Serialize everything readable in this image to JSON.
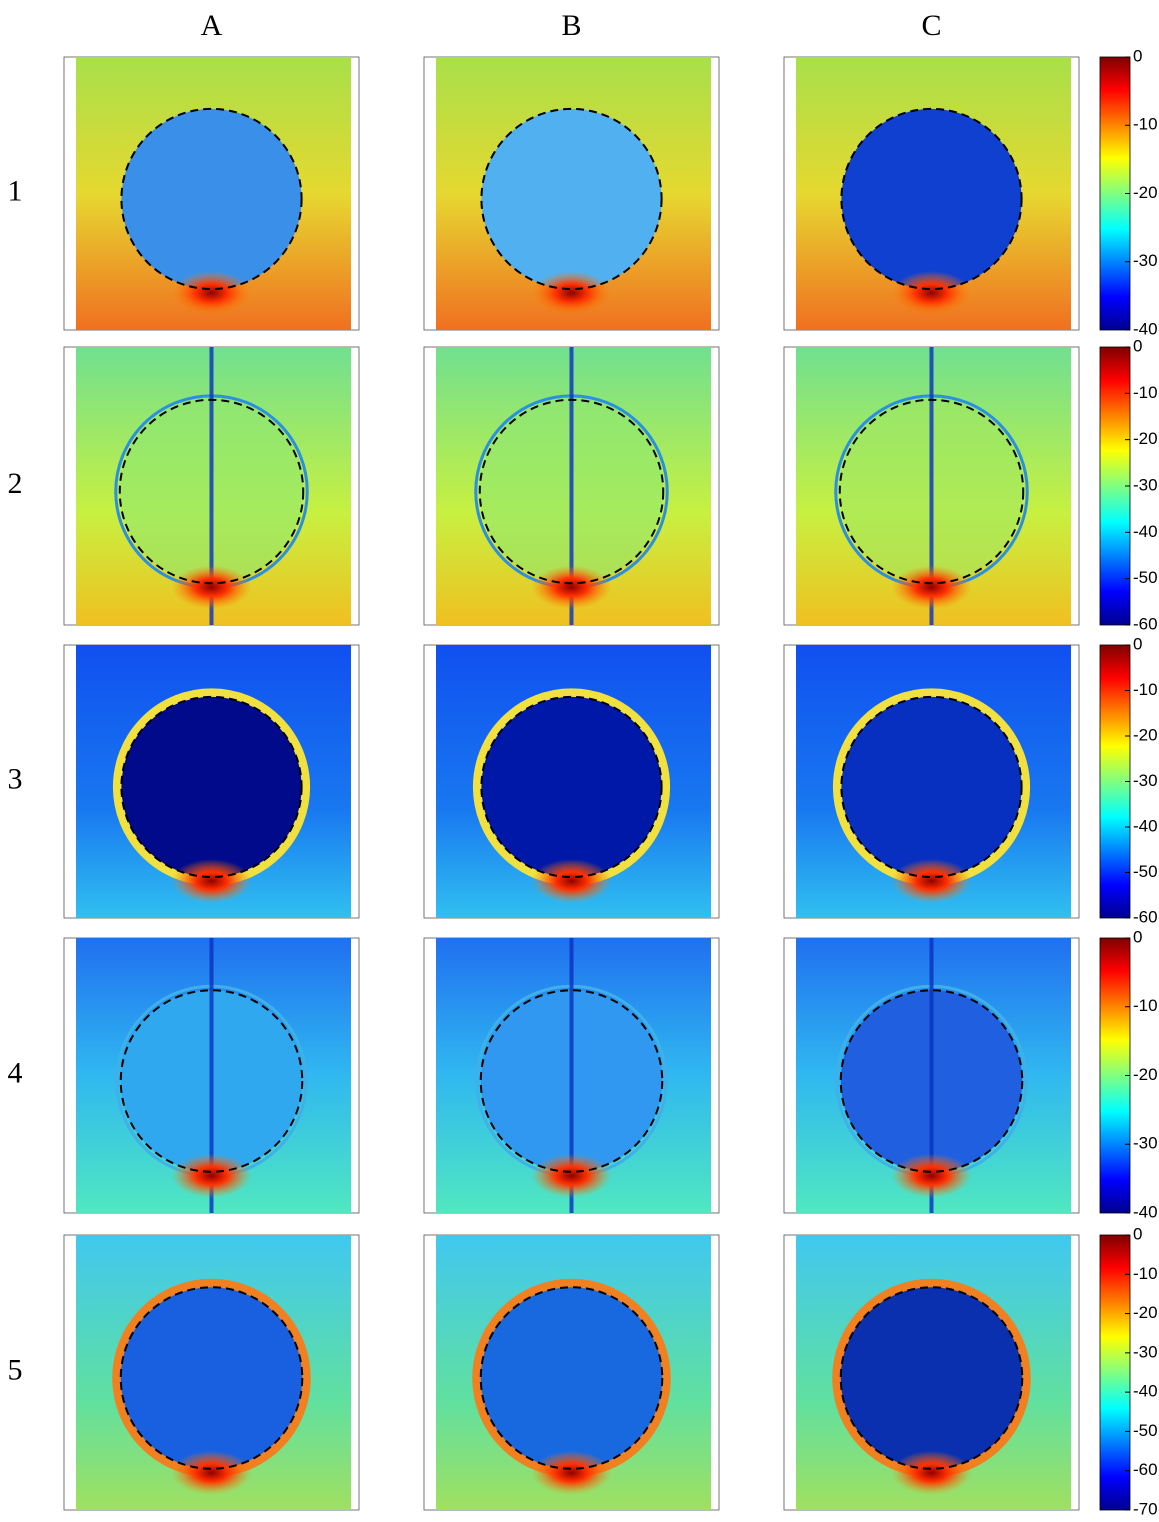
{
  "columns": [
    "A",
    "B",
    "C"
  ],
  "rows": [
    {
      "label": "1",
      "colorbar": {
        "range": [
          -40,
          0
        ],
        "ticks": [
          0,
          -10,
          -20,
          -30,
          -40
        ]
      }
    },
    {
      "label": "2",
      "colorbar": {
        "range": [
          -60,
          0
        ],
        "ticks": [
          0,
          -10,
          -20,
          -30,
          -40,
          -50,
          -60
        ]
      }
    },
    {
      "label": "3",
      "colorbar": {
        "range": [
          -60,
          0
        ],
        "ticks": [
          0,
          -10,
          -20,
          -30,
          -40,
          -50,
          -60
        ]
      }
    },
    {
      "label": "4",
      "colorbar": {
        "range": [
          -40,
          0
        ],
        "ticks": [
          0,
          -10,
          -20,
          -30,
          -40
        ]
      }
    },
    {
      "label": "5",
      "colorbar": {
        "range": [
          -70,
          0
        ],
        "ticks": [
          0,
          -10,
          -20,
          -30,
          -40,
          -50,
          -60,
          -70
        ]
      }
    }
  ]
}
